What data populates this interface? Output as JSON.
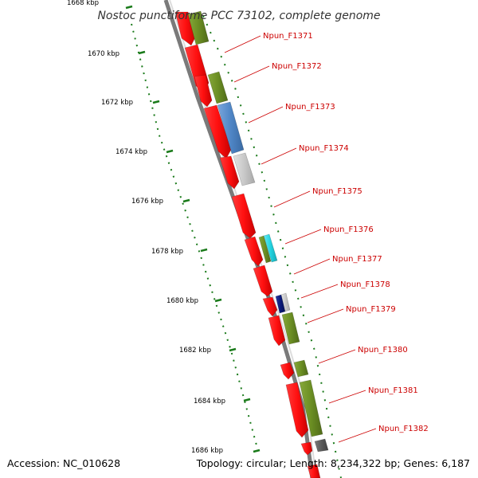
{
  "title": "Nostoc punctiforme PCC 73102, complete genome",
  "footer": {
    "accession": "Accession: NC_010628",
    "summary": "Topology: circular; Length: 8,234,322 bp; Genes: 6,187"
  },
  "colors": {
    "backbone": "#808080",
    "cds": "#ff1a1a",
    "olive": "#6b8e23",
    "blue": "#4f86c6",
    "gray": "#c8c8c8",
    "cyan": "#22d3e0",
    "navy": "#0a1a7a",
    "darkgray": "#5a5a5a",
    "tick": "#1a7a1a",
    "label": "#cc0000"
  },
  "kbp_ticks": [
    {
      "label": "1668 kbp"
    },
    {
      "label": "1670 kbp"
    },
    {
      "label": "1672 kbp"
    },
    {
      "label": "1674 kbp"
    },
    {
      "label": "1676 kbp"
    },
    {
      "label": "1678 kbp"
    },
    {
      "label": "1680 kbp"
    },
    {
      "label": "1682 kbp"
    },
    {
      "label": "1684 kbp"
    },
    {
      "label": "1686 kbp"
    }
  ],
  "gene_labels": [
    {
      "label": "Npun_F1371"
    },
    {
      "label": "Npun_F1372"
    },
    {
      "label": "Npun_F1373"
    },
    {
      "label": "Npun_F1374"
    },
    {
      "label": "Npun_F1375"
    },
    {
      "label": "Npun_F1376"
    },
    {
      "label": "Npun_F1377"
    },
    {
      "label": "Npun_F1378"
    },
    {
      "label": "Npun_F1379"
    },
    {
      "label": "Npun_F1380"
    },
    {
      "label": "Npun_F1381"
    },
    {
      "label": "Npun_F1382"
    }
  ]
}
